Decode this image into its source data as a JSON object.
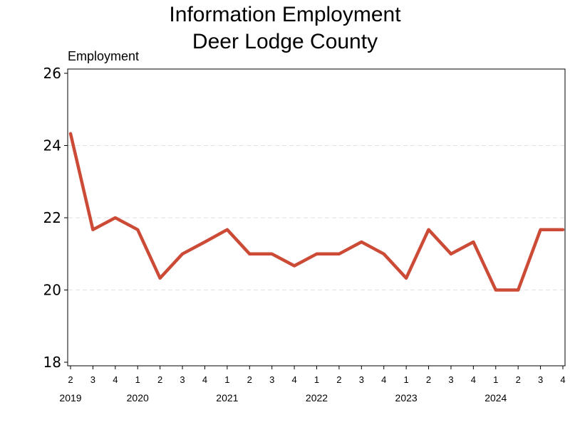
{
  "chart_data": {
    "type": "line",
    "title": "Information Employment",
    "subtitle": "Deer Lodge County",
    "ylabel": "Employment",
    "ylim": [
      18,
      26
    ],
    "yticks": [
      18,
      20,
      22,
      24,
      26
    ],
    "grid": true,
    "line_color": "#cc4b37",
    "categories": [
      "2019 Q2",
      "2019 Q3",
      "2019 Q4",
      "2020 Q1",
      "2020 Q2",
      "2020 Q3",
      "2020 Q4",
      "2021 Q1",
      "2021 Q2",
      "2021 Q3",
      "2021 Q4",
      "2022 Q1",
      "2022 Q2",
      "2022 Q3",
      "2022 Q4",
      "2023 Q1",
      "2023 Q2",
      "2023 Q3",
      "2023 Q4",
      "2024 Q1",
      "2024 Q2",
      "2024 Q3",
      "2024 Q4"
    ],
    "quarter_labels": [
      "2",
      "3",
      "4",
      "1",
      "2",
      "3",
      "4",
      "1",
      "2",
      "3",
      "4",
      "1",
      "2",
      "3",
      "4",
      "1",
      "2",
      "3",
      "4",
      "1",
      "2",
      "3",
      "4"
    ],
    "year_labels": [
      {
        "label": "2019",
        "index": 0
      },
      {
        "label": "2020",
        "index": 3
      },
      {
        "label": "2021",
        "index": 7
      },
      {
        "label": "2022",
        "index": 11
      },
      {
        "label": "2023",
        "index": 15
      },
      {
        "label": "2024",
        "index": 19
      }
    ],
    "series": [
      {
        "values": [
          24.33,
          21.67,
          22.0,
          21.67,
          20.33,
          21.0,
          21.33,
          21.67,
          21.0,
          21.0,
          20.67,
          21.0,
          21.0,
          21.33,
          21.0,
          20.33,
          21.67,
          21.0,
          21.33,
          20.0,
          20.0,
          21.67,
          21.67
        ]
      }
    ]
  }
}
